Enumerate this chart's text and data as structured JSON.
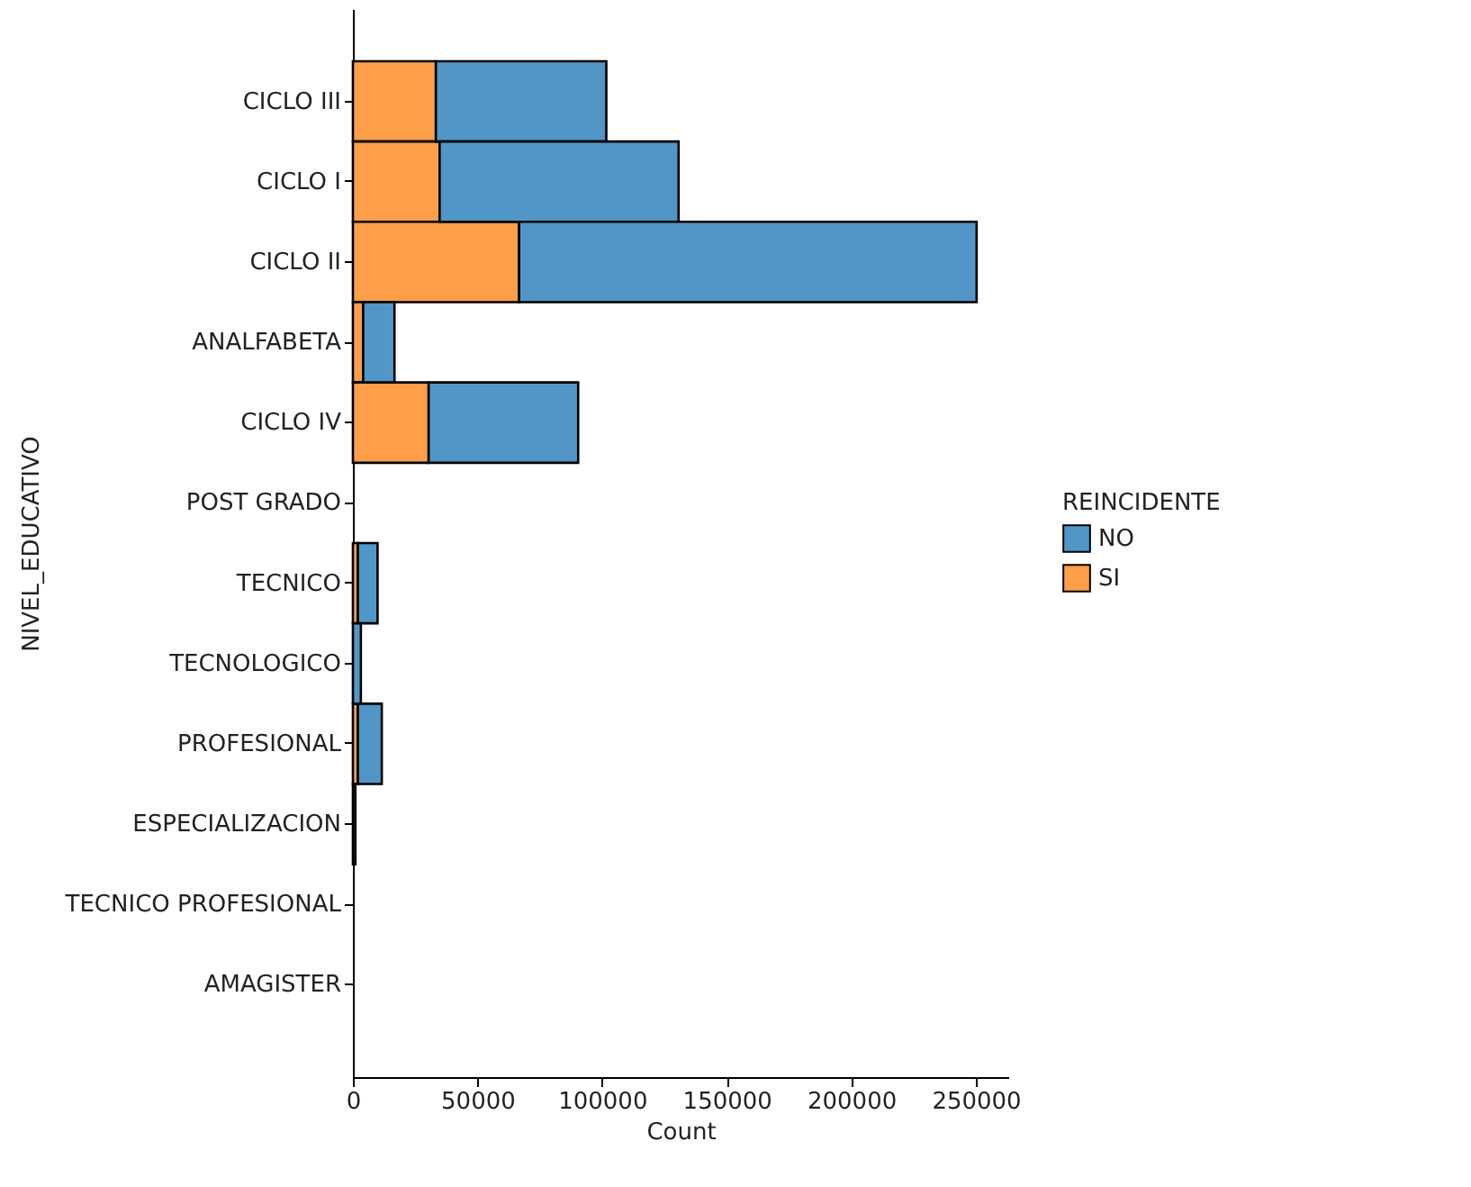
{
  "chart_data": {
    "type": "bar",
    "orientation": "horizontal",
    "stacked": true,
    "xlabel": "Count",
    "ylabel": "NIVEL_EDUCATIVO",
    "legend_title": "REINCIDENTE",
    "legend": "right",
    "grid": false,
    "categories": [
      "CICLO III",
      "CICLO I",
      "CICLO II",
      "ANALFABETA",
      "CICLO IV",
      "POST GRADO",
      "TECNICO",
      "TECNOLOGICO",
      "PROFESIONAL",
      "ESPECIALIZACION",
      "TECNICO PROFESIONAL",
      "AMAGISTER"
    ],
    "series": [
      {
        "name": "SI",
        "color": "#fe9e48",
        "values": [
          33300,
          34800,
          66700,
          4100,
          30400,
          null,
          2000,
          null,
          2000,
          null,
          null,
          null
        ]
      },
      {
        "name": "NO",
        "color": "#5196c6",
        "values": [
          68400,
          95900,
          183600,
          12600,
          60000,
          null,
          7900,
          3200,
          9600,
          1000,
          null,
          null
        ]
      }
    ],
    "xlim": [
      0,
      263000
    ],
    "xticks": [
      0,
      50000,
      100000,
      150000,
      200000,
      250000
    ]
  }
}
